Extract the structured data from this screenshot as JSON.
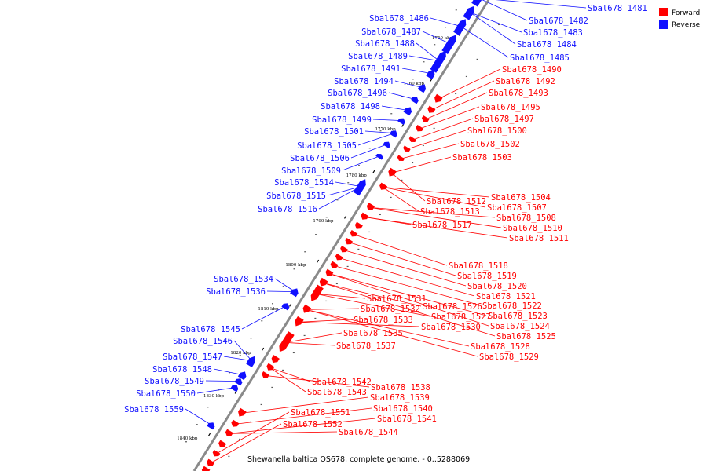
{
  "caption": "Shewanella baltica OS678, complete genome. - 0..5288069",
  "colors": {
    "forward": "#ff0000",
    "reverse": "#1010ff",
    "backbone": "#8a8a8a"
  },
  "legend": [
    {
      "label": "Forward",
      "strand": "forward"
    },
    {
      "label": "Reverse",
      "strand": "reverse"
    }
  ],
  "ticks": [
    "1750 kbp",
    "1760 kbp",
    "1770 kbp",
    "1780 kbp",
    "1790 kbp",
    "1800 kbp",
    "1810 kbp",
    "1820 kbp",
    "1830 kbp",
    "1840 kbp"
  ],
  "forward_genes": [
    "Sbal678_1490",
    "Sbal678_1492",
    "Sbal678_1493",
    "Sbal678_1495",
    "Sbal678_1497",
    "Sbal678_1500",
    "Sbal678_1502",
    "Sbal678_1503",
    "Sbal678_1504",
    "Sbal678_1507",
    "Sbal678_1508",
    "Sbal678_1510",
    "Sbal678_1511",
    "Sbal678_1512",
    "Sbal678_1513",
    "Sbal678_1517",
    "Sbal678_1518",
    "Sbal678_1519",
    "Sbal678_1520",
    "Sbal678_1521",
    "Sbal678_1522",
    "Sbal678_1523",
    "Sbal678_1524",
    "Sbal678_1525",
    "Sbal678_1526",
    "Sbal678_1527",
    "Sbal678_1528",
    "Sbal678_1529",
    "Sbal678_1530",
    "Sbal678_1531",
    "Sbal678_1532",
    "Sbal678_1533",
    "Sbal678_1535",
    "Sbal678_1537",
    "Sbal678_1538",
    "Sbal678_1539",
    "Sbal678_1540",
    "Sbal678_1541",
    "Sbal678_1542",
    "Sbal678_1543",
    "Sbal678_1544",
    "Sbal678_1551",
    "Sbal678_1552"
  ],
  "reverse_genes": [
    "Sbal678_1481",
    "Sbal678_1482",
    "Sbal678_1483",
    "Sbal678_1484",
    "Sbal678_1485",
    "Sbal678_1486",
    "Sbal678_1487",
    "Sbal678_1488",
    "Sbal678_1489",
    "Sbal678_1491",
    "Sbal678_1494",
    "Sbal678_1496",
    "Sbal678_1498",
    "Sbal678_1499",
    "Sbal678_1501",
    "Sbal678_1505",
    "Sbal678_1506",
    "Sbal678_1509",
    "Sbal678_1514",
    "Sbal678_1515",
    "Sbal678_1516",
    "Sbal678_1534",
    "Sbal678_1536",
    "Sbal678_1545",
    "Sbal678_1546",
    "Sbal678_1547",
    "Sbal678_1548",
    "Sbal678_1549",
    "Sbal678_1550",
    "Sbal678_1559"
  ]
}
